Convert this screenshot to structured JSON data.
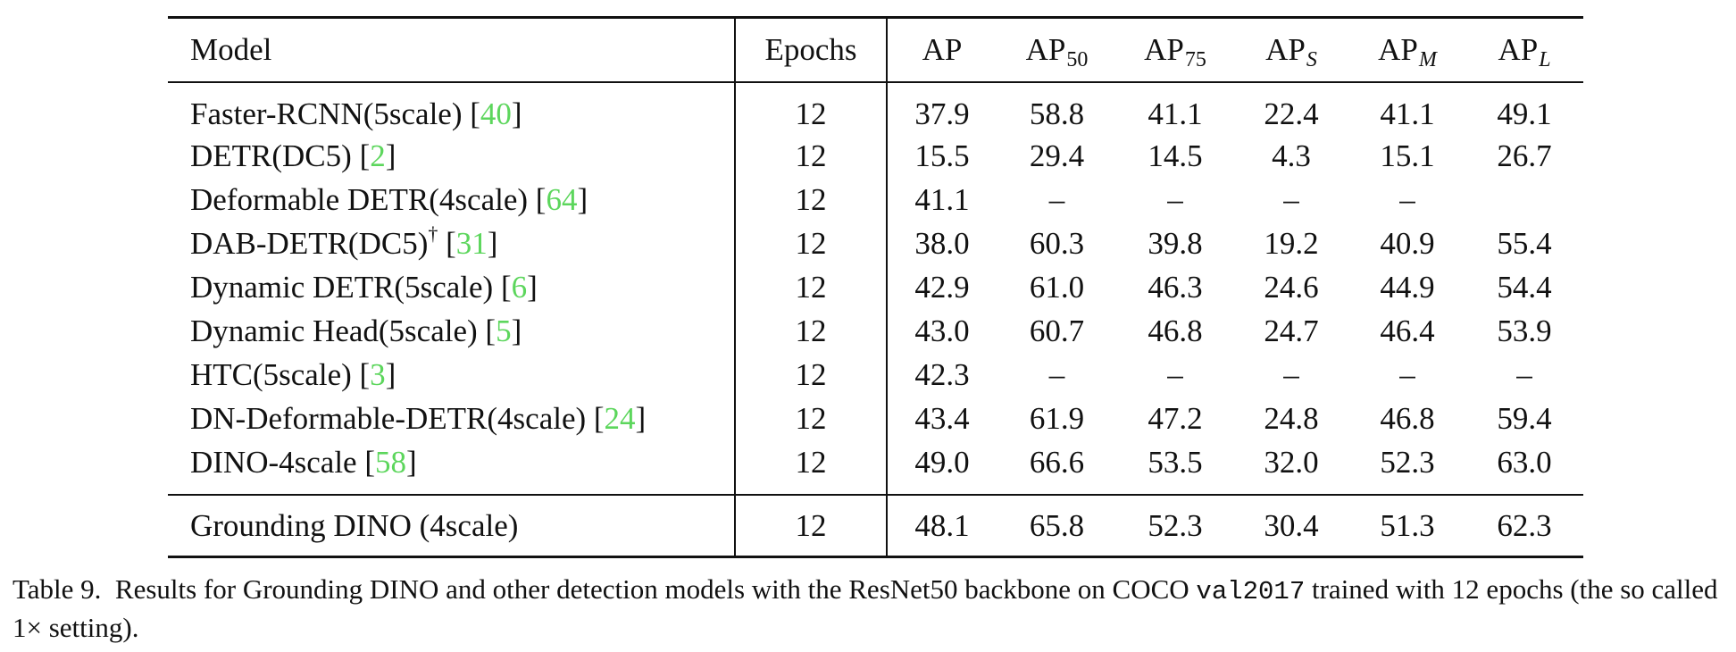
{
  "table": {
    "header": {
      "model": "Model",
      "epochs": "Epochs",
      "ap": "AP",
      "ap50": {
        "base": "AP",
        "sub": "50"
      },
      "ap75": {
        "base": "AP",
        "sub": "75"
      },
      "aps": {
        "base": "AP",
        "sub": "S"
      },
      "apm": {
        "base": "AP",
        "sub": "M"
      },
      "apl": {
        "base": "AP",
        "sub": "L"
      }
    },
    "rows": [
      {
        "model": "Faster-RCNN(5scale)",
        "sup": "",
        "ref": "40",
        "epochs": "12",
        "ap": "37.9",
        "ap50": "58.8",
        "ap75": "41.1",
        "aps": "22.4",
        "apm": "41.1",
        "apl": "49.1"
      },
      {
        "model": "DETR(DC5)",
        "sup": "",
        "ref": "2",
        "epochs": "12",
        "ap": "15.5",
        "ap50": "29.4",
        "ap75": "14.5",
        "aps": "4.3",
        "apm": "15.1",
        "apl": "26.7"
      },
      {
        "model": "Deformable DETR(4scale)",
        "sup": "",
        "ref": "64",
        "epochs": "12",
        "ap": "41.1",
        "ap50": "–",
        "ap75": "–",
        "aps": "–",
        "apm": "–",
        "apl": ""
      },
      {
        "model": "DAB-DETR(DC5)",
        "sup": "†",
        "ref": "31",
        "epochs": "12",
        "ap": "38.0",
        "ap50": "60.3",
        "ap75": "39.8",
        "aps": "19.2",
        "apm": "40.9",
        "apl": "55.4"
      },
      {
        "model": "Dynamic DETR(5scale)",
        "sup": "",
        "ref": "6",
        "epochs": "12",
        "ap": "42.9",
        "ap50": "61.0",
        "ap75": "46.3",
        "aps": "24.6",
        "apm": "44.9",
        "apl": "54.4"
      },
      {
        "model": "Dynamic Head(5scale)",
        "sup": "",
        "ref": "5",
        "epochs": "12",
        "ap": "43.0",
        "ap50": "60.7",
        "ap75": "46.8",
        "aps": "24.7",
        "apm": "46.4",
        "apl": "53.9"
      },
      {
        "model": "HTC(5scale)",
        "sup": "",
        "ref": "3",
        "epochs": "12",
        "ap": "42.3",
        "ap50": "–",
        "ap75": "–",
        "aps": "–",
        "apm": "–",
        "apl": "–"
      },
      {
        "model": "DN-Deformable-DETR(4scale)",
        "sup": "",
        "ref": "24",
        "epochs": "12",
        "ap": "43.4",
        "ap50": "61.9",
        "ap75": "47.2",
        "aps": "24.8",
        "apm": "46.8",
        "apl": "59.4"
      },
      {
        "model": "DINO-4scale",
        "sup": "",
        "ref": "58",
        "epochs": "12",
        "ap": "49.0",
        "ap50": "66.6",
        "ap75": "53.5",
        "aps": "32.0",
        "apm": "52.3",
        "apl": "63.0"
      }
    ],
    "footer_row": {
      "model": "Grounding DINO (4scale)",
      "epochs": "12",
      "ap": "48.1",
      "ap50": "65.8",
      "ap75": "52.3",
      "aps": "30.4",
      "apm": "51.3",
      "apl": "62.3"
    }
  },
  "caption": {
    "label": "Table 9.",
    "text_before": "Results for Grounding DINO and other detection models with the ResNet50 backbone on COCO",
    "code": "val2017",
    "text_after": "trained with 12 epochs (the so called 1× setting)."
  },
  "colors": {
    "reference_link": "#5cd65c",
    "text": "#111111"
  }
}
